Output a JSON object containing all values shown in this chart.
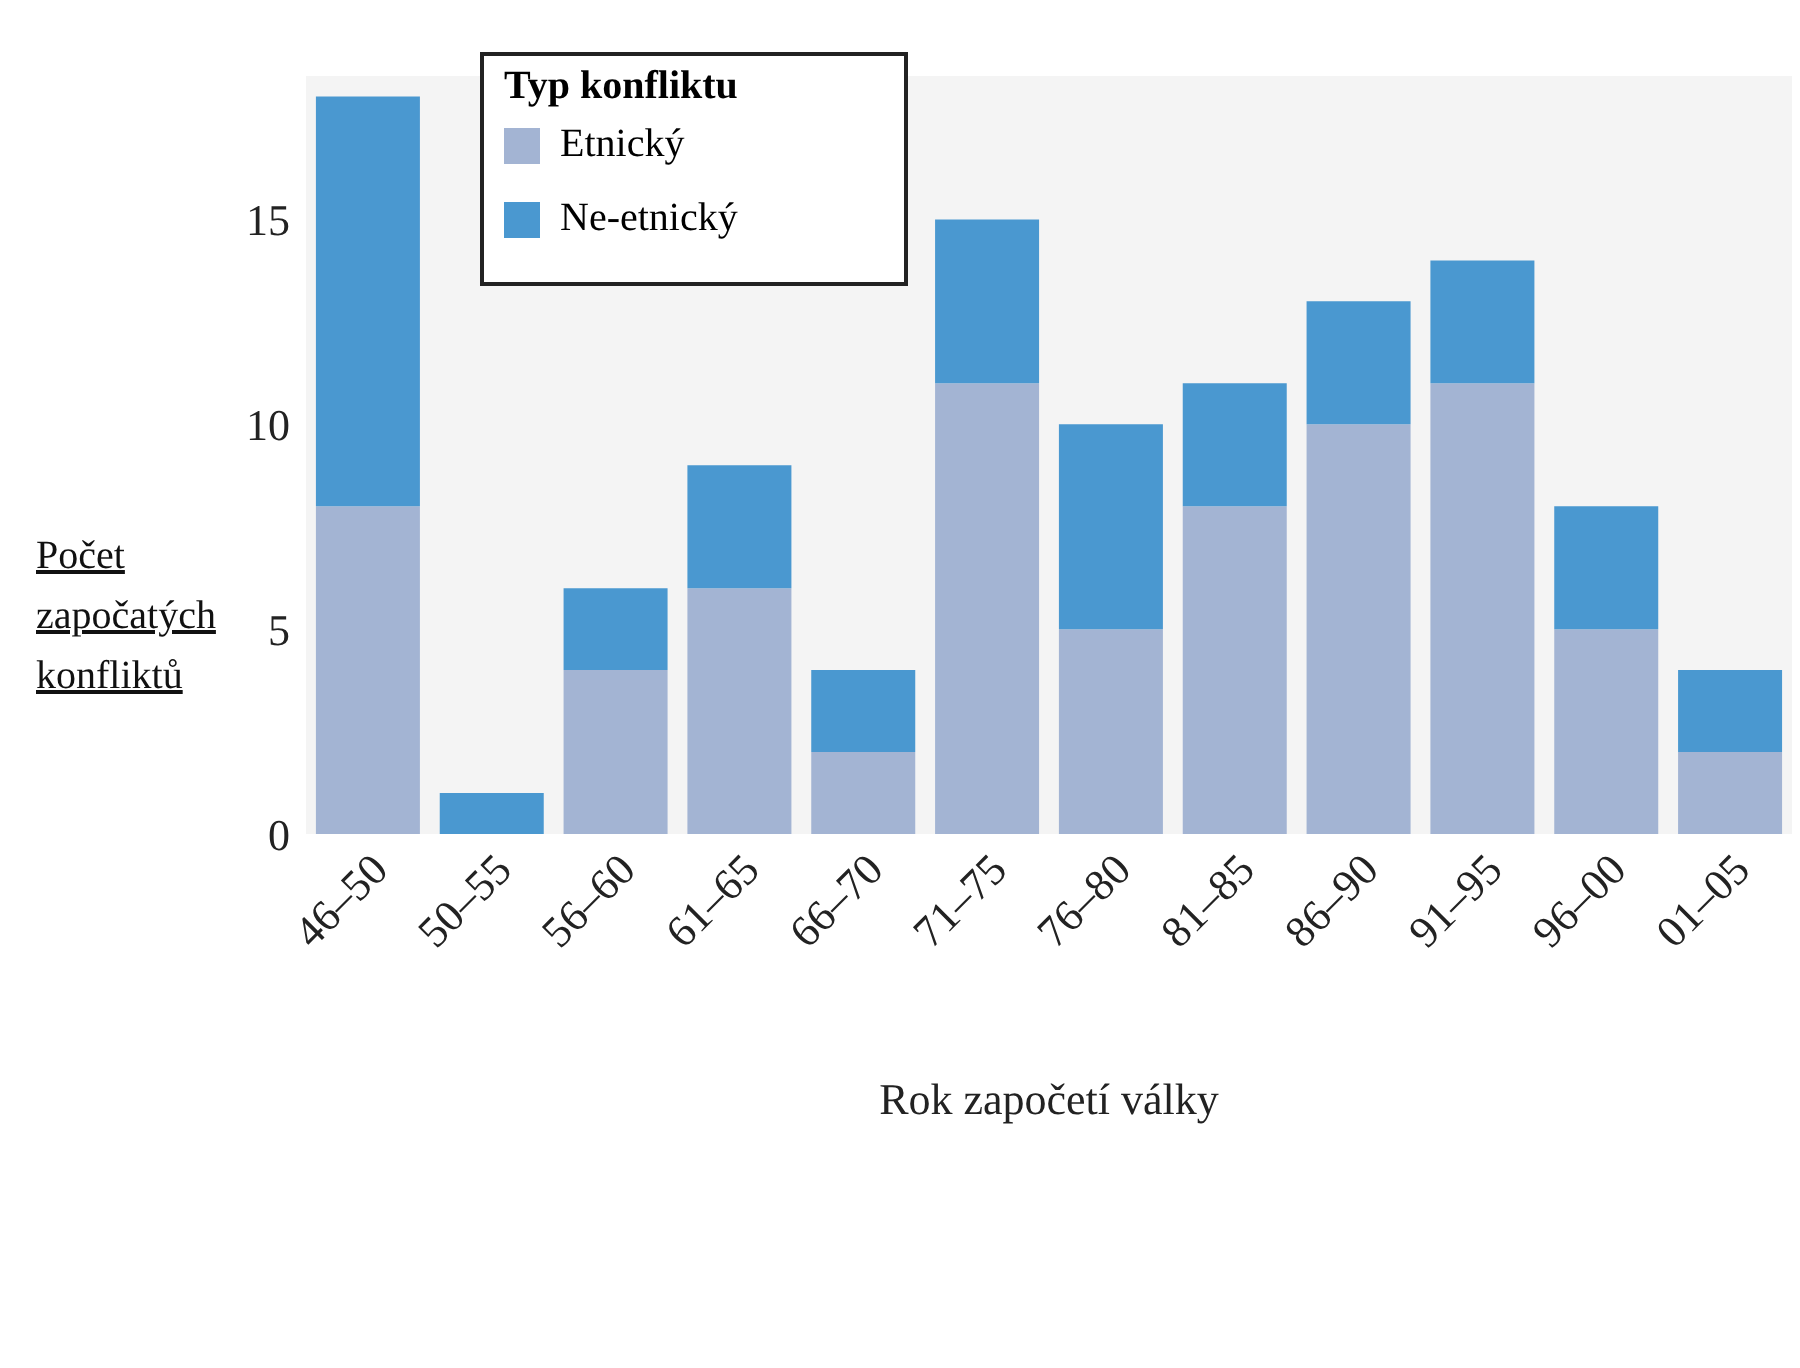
{
  "chart_data": {
    "type": "bar",
    "stacked": true,
    "xlabel": "Rok započetí války",
    "ylabel": "Počet započatých konfliktů",
    "legend_title": "Typ konfliktu",
    "legend": "top left",
    "grid": false,
    "categories": [
      "46–50",
      "50–55",
      "56–60",
      "61–65",
      "66–70",
      "71–75",
      "76–80",
      "81–85",
      "86–90",
      "91–95",
      "96–00",
      "01–05"
    ],
    "series": [
      {
        "name": "Etnický",
        "color": "#a3b4d3",
        "values": [
          8,
          0,
          4,
          6,
          2,
          11,
          5,
          8,
          10,
          11,
          5,
          2
        ]
      },
      {
        "name": "Ne-etnický",
        "color": "#4a98d0",
        "values": [
          10,
          1,
          2,
          3,
          2,
          4,
          5,
          3,
          3,
          3,
          3,
          2
        ]
      }
    ],
    "ylim": [
      0,
      18.5
    ],
    "yticks": [
      0,
      5,
      10,
      15
    ]
  }
}
